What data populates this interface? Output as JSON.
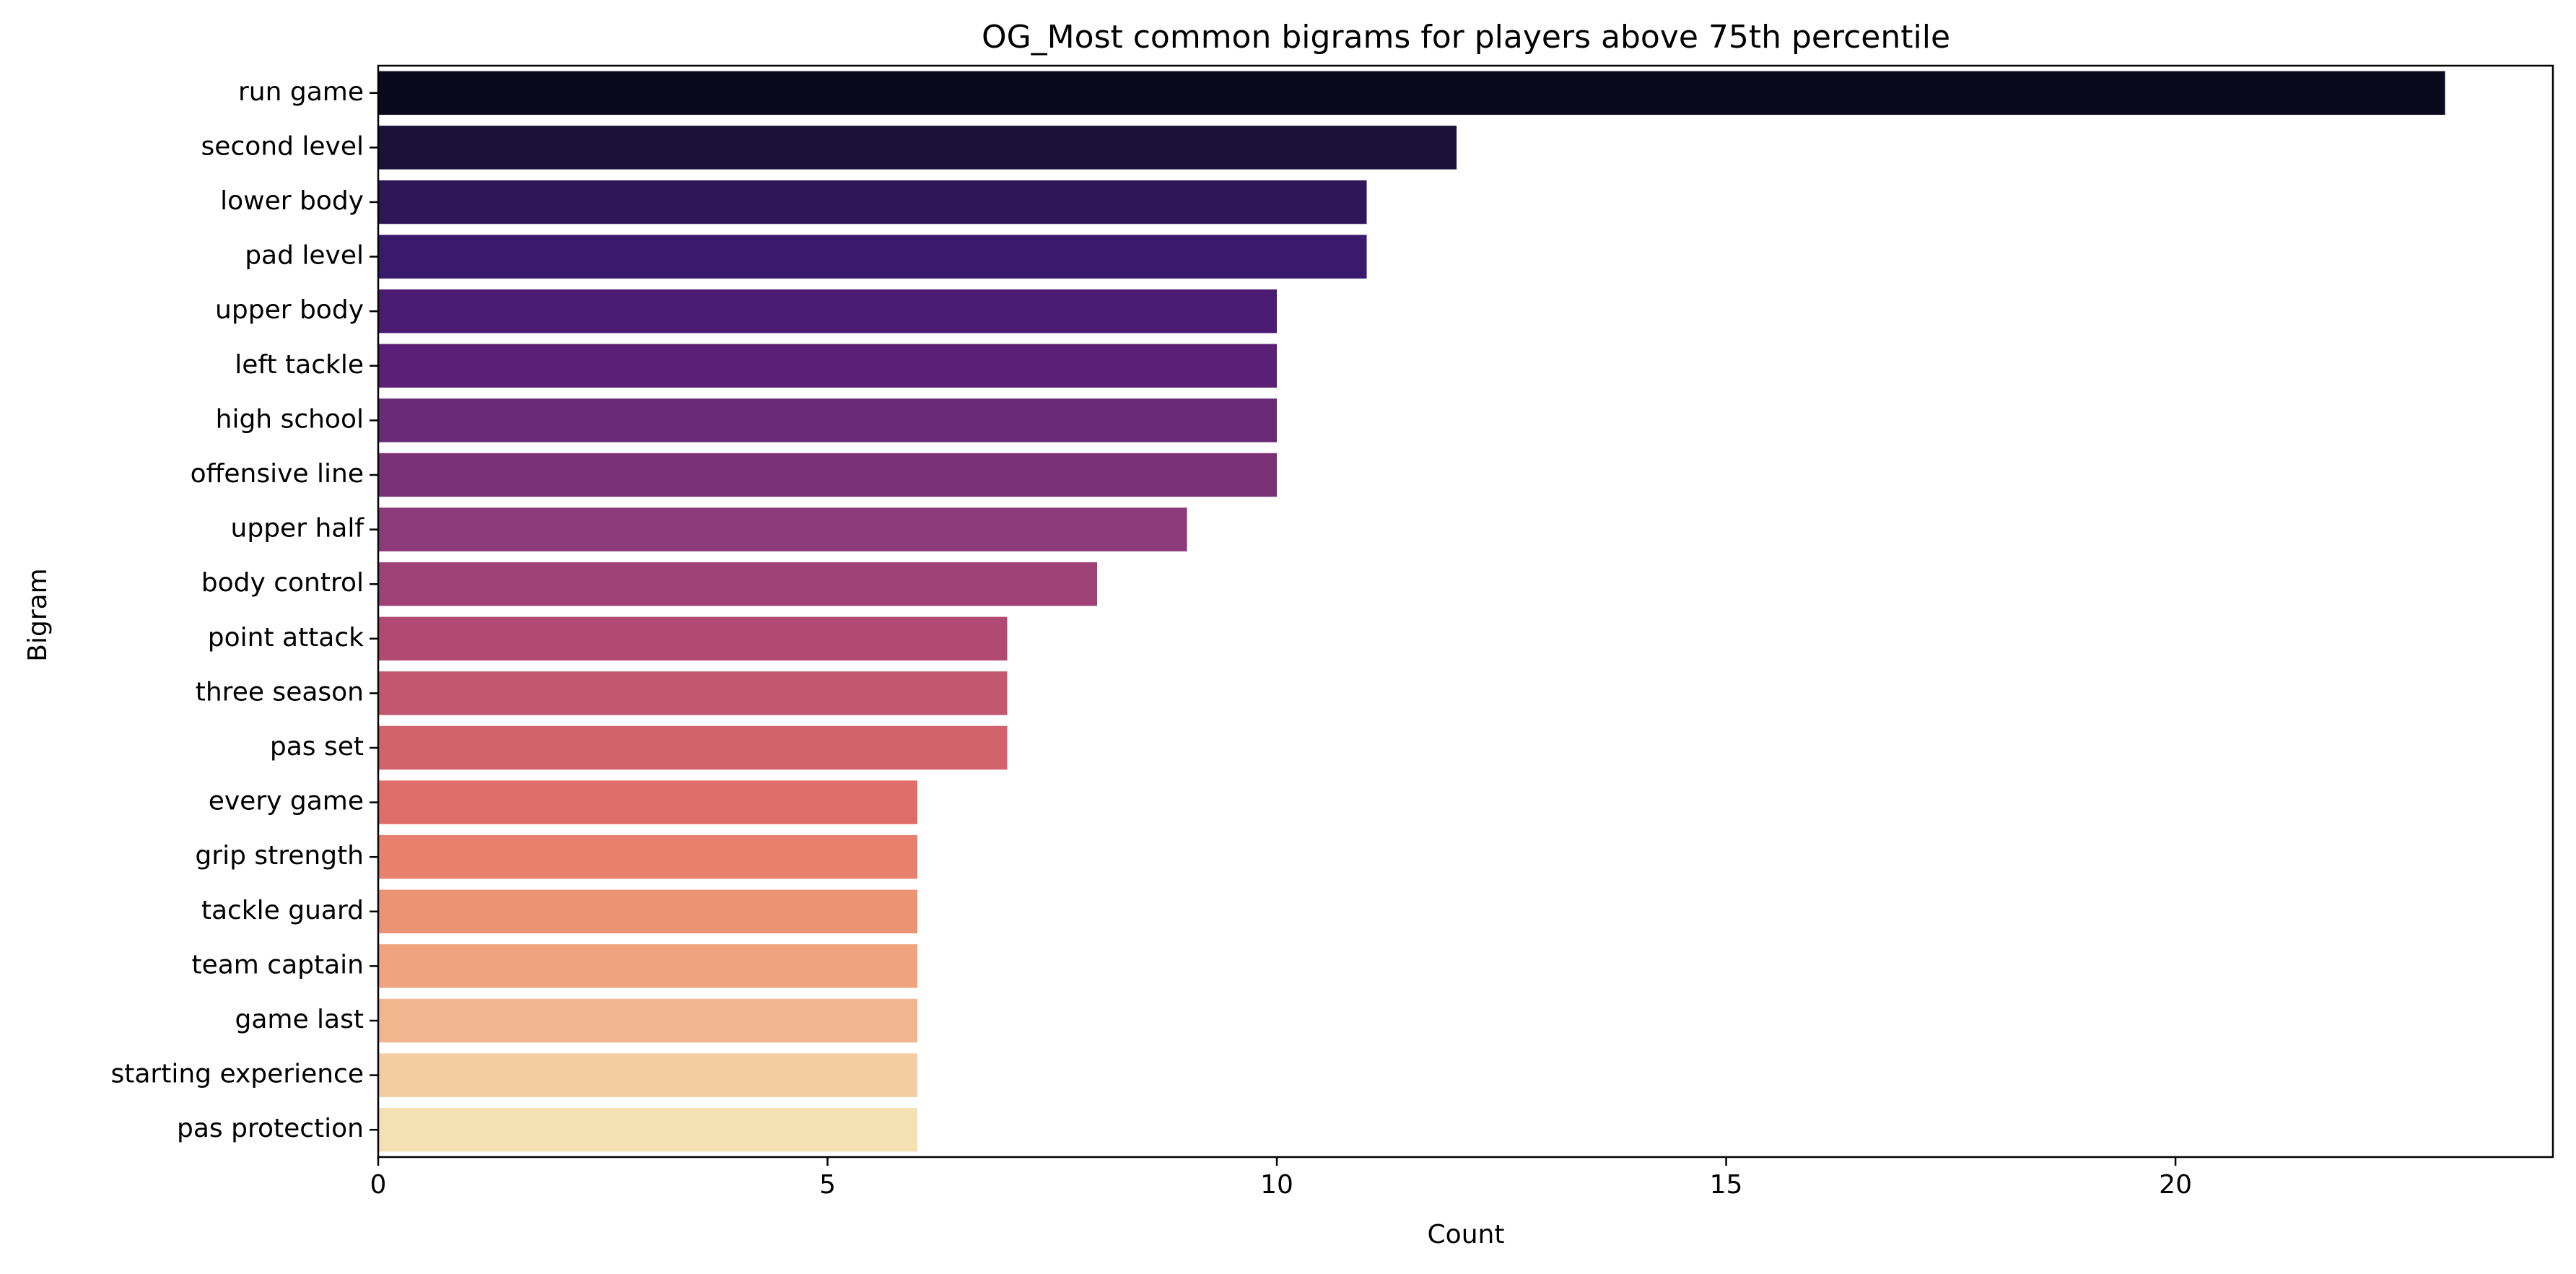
{
  "chart_data": {
    "type": "bar",
    "orientation": "horizontal",
    "title": "OG_Most common bigrams for players above 75th percentile",
    "xlabel": "Count",
    "ylabel": "Bigram",
    "xlim": [
      0,
      24.2
    ],
    "xticks": [
      0,
      5,
      10,
      15,
      20
    ],
    "grid": false,
    "legend": "none",
    "palette": "magma",
    "categories": [
      "run game",
      "second level",
      "lower body",
      "pad level",
      "upper body",
      "left tackle",
      "high school",
      "offensive line",
      "upper half",
      "body control",
      "point attack",
      "three season",
      "pas set",
      "every game",
      "grip strength",
      "tackle guard",
      "team captain",
      "game last",
      "starting experience",
      "pas protection"
    ],
    "values": [
      23,
      12,
      11,
      11,
      10,
      10,
      10,
      10,
      9,
      8,
      7,
      7,
      7,
      6,
      6,
      6,
      6,
      6,
      6,
      6
    ],
    "colors": [
      "#09081d",
      "#1a1238",
      "#2d1658",
      "#3a1a6c",
      "#4b1b72",
      "#5a1f76",
      "#6a2a78",
      "#7a3176",
      "#8c3a79",
      "#9d4176",
      "#b04a72",
      "#c3576f",
      "#d3626c",
      "#df6d6a",
      "#e7816e",
      "#ec9374",
      "#efa47f",
      "#f1b68d",
      "#f3cd9f",
      "#f3e1b3"
    ]
  }
}
